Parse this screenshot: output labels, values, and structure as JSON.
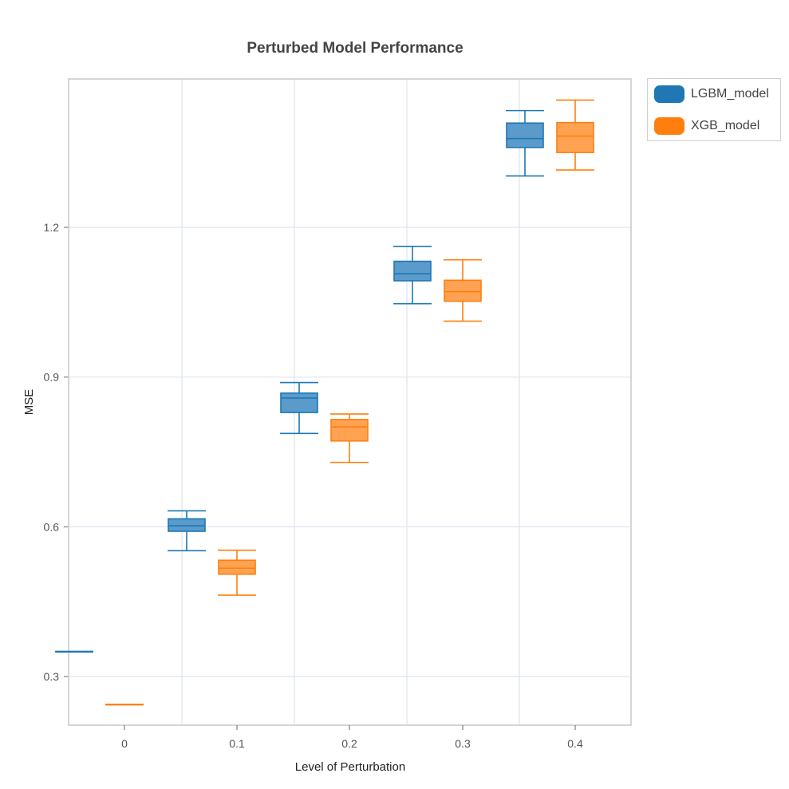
{
  "chart_data": {
    "type": "box",
    "title": "Perturbed Model Performance",
    "xlabel": "Level of Perturbation",
    "ylabel": "MSE",
    "categories": [
      "0",
      "0.1",
      "0.2",
      "0.3",
      "0.4"
    ],
    "ylim": [
      0.2,
      1.5
    ],
    "yticks": [
      0.3,
      0.6,
      0.9,
      1.2
    ],
    "ytick_labels": [
      "0.3",
      "0.6",
      "0.9",
      "1.2"
    ],
    "grid": true,
    "legend_position": "top-right outside",
    "series": [
      {
        "name": "LGBM_model",
        "color": "#1f77b4",
        "boxes": [
          {
            "min": 0.35,
            "q1": 0.35,
            "median": 0.35,
            "q3": 0.35,
            "max": 0.35
          },
          {
            "min": 0.552,
            "q1": 0.591,
            "median": 0.602,
            "q3": 0.616,
            "max": 0.632
          },
          {
            "min": 0.787,
            "q1": 0.829,
            "median": 0.858,
            "q3": 0.868,
            "max": 0.889
          },
          {
            "min": 1.047,
            "q1": 1.093,
            "median": 1.107,
            "q3": 1.132,
            "max": 1.162
          },
          {
            "min": 1.303,
            "q1": 1.36,
            "median": 1.378,
            "q3": 1.409,
            "max": 1.434
          }
        ]
      },
      {
        "name": "XGB_model",
        "color": "#ff7f0e",
        "boxes": [
          {
            "min": 0.244,
            "q1": 0.244,
            "median": 0.244,
            "q3": 0.244,
            "max": 0.244
          },
          {
            "min": 0.463,
            "q1": 0.505,
            "median": 0.517,
            "q3": 0.533,
            "max": 0.553
          },
          {
            "min": 0.729,
            "q1": 0.772,
            "median": 0.8,
            "q3": 0.815,
            "max": 0.826
          },
          {
            "min": 1.012,
            "q1": 1.052,
            "median": 1.071,
            "q3": 1.094,
            "max": 1.135
          },
          {
            "min": 1.315,
            "q1": 1.35,
            "median": 1.383,
            "q3": 1.41,
            "max": 1.455
          }
        ]
      }
    ]
  }
}
